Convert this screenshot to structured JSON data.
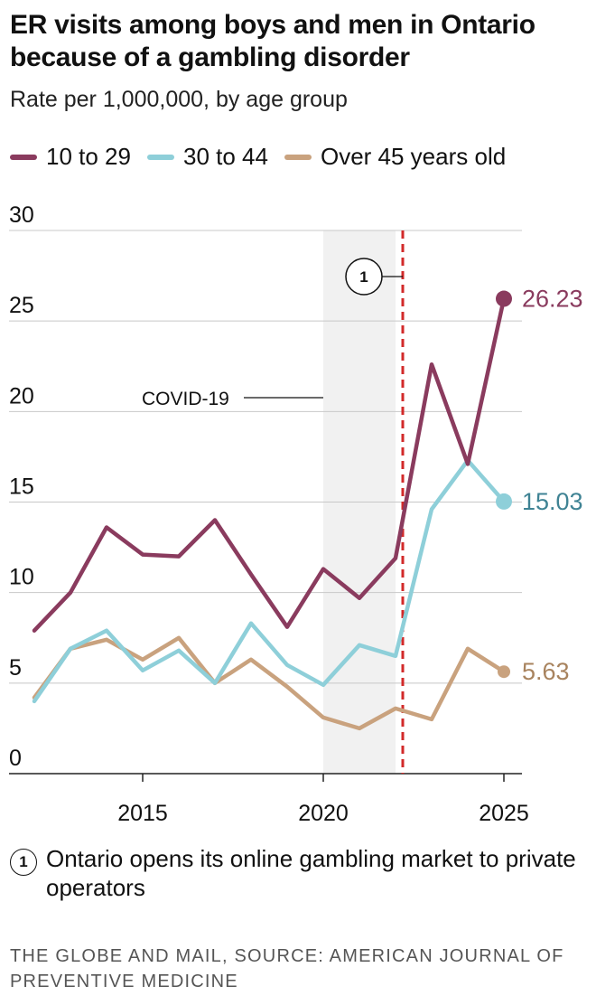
{
  "title": "ER visits among boys and men in Ontario because of a gambling disorder",
  "subtitle": "Rate per 1,000,000, by age group",
  "legend": [
    {
      "label": "10 to 29",
      "color": "#8a3b5e"
    },
    {
      "label": "30 to 44",
      "color": "#8ecfd9"
    },
    {
      "label": "Over 45 years old",
      "color": "#c9a27e"
    }
  ],
  "annotations": {
    "covid_label": "COVID-19",
    "marker_number": "1",
    "note_text": "Ontario opens its online gambling market to private operators"
  },
  "source": "THE GLOBE AND MAIL, SOURCE: AMERICAN JOURNAL OF PREVENTIVE MEDICINE",
  "chart_data": {
    "type": "line",
    "x": [
      2012,
      2013,
      2014,
      2015,
      2016,
      2017,
      2018,
      2019,
      2020,
      2021,
      2022,
      2023,
      2024,
      2025
    ],
    "series": [
      {
        "name": "10 to 29",
        "color": "#8a3b5e",
        "values": [
          7.9,
          10.0,
          13.6,
          12.1,
          12.0,
          14.0,
          11.0,
          8.1,
          11.3,
          9.7,
          11.9,
          22.6,
          17.1,
          26.23
        ],
        "end_label": "26.23",
        "end_label_color": "#8a3b5e"
      },
      {
        "name": "30 to 44",
        "color": "#8ecfd9",
        "values": [
          4.0,
          6.9,
          7.9,
          5.7,
          6.8,
          5.0,
          8.3,
          6.0,
          4.9,
          7.1,
          6.5,
          14.6,
          17.3,
          15.03
        ],
        "end_label": "15.03",
        "end_label_color": "#3f8394"
      },
      {
        "name": "Over 45 years old",
        "color": "#c9a27e",
        "values": [
          4.2,
          6.9,
          7.4,
          6.3,
          7.5,
          5.0,
          6.3,
          4.8,
          3.1,
          2.5,
          3.6,
          3.0,
          6.9,
          5.63
        ],
        "end_label": "5.63",
        "end_label_color": "#a8835e"
      }
    ],
    "yticks": [
      "0",
      "5",
      "10",
      "15",
      "20",
      "25",
      "30"
    ],
    "xticks": [
      "2015",
      "2020",
      "2025"
    ],
    "ylim": [
      0,
      30
    ],
    "xlim": [
      2011.3,
      2025.5
    ],
    "covid_shade": [
      2020,
      2022
    ],
    "policy_line_x": 2022.2,
    "grid": true,
    "legend_position": "top-left"
  }
}
